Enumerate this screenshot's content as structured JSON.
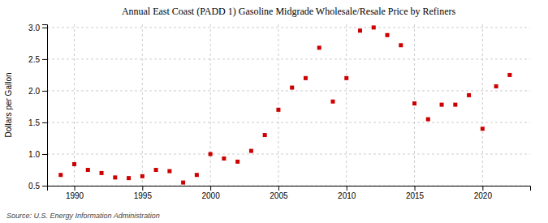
{
  "chart_data": {
    "type": "scatter",
    "title": "Annual East Coast (PADD 1) Gasoline Midgrade Wholesale/Resale Price by Refiners",
    "ylabel": "Dollars per Gallon",
    "annotations": [
      "Source: U.S. Energy Information Administration"
    ],
    "x": [
      1989,
      1990,
      1991,
      1992,
      1993,
      1994,
      1995,
      1996,
      1997,
      1998,
      1999,
      2000,
      2001,
      2002,
      2003,
      2004,
      2005,
      2006,
      2007,
      2008,
      2009,
      2010,
      2011,
      2012,
      2013,
      2014,
      2015,
      2016,
      2017,
      2018,
      2019,
      2020,
      2021,
      2022
    ],
    "values": [
      0.67,
      0.84,
      0.75,
      0.7,
      0.63,
      0.62,
      0.65,
      0.75,
      0.73,
      0.55,
      0.67,
      1.0,
      0.93,
      0.88,
      1.05,
      1.3,
      1.7,
      2.05,
      2.2,
      2.68,
      1.83,
      2.2,
      2.95,
      3.0,
      2.88,
      2.72,
      1.8,
      1.55,
      1.78,
      1.78,
      1.93,
      1.4,
      2.07,
      2.25
    ],
    "color": "#cc0000",
    "marker": "square",
    "xlim": [
      1988.0,
      2023.5
    ],
    "ylim": [
      0.5,
      3.05
    ],
    "xticks": [
      1990,
      1995,
      2000,
      2005,
      2010,
      2015,
      2020
    ],
    "yticks": [
      0.5,
      {
        "value": 1.0,
        "label": "1.0"
      },
      1.5,
      {
        "value": 2.0,
        "label": "2.0"
      },
      2.5,
      {
        "value": 3.0,
        "label": "3.0"
      }
    ],
    "grid": true
  }
}
